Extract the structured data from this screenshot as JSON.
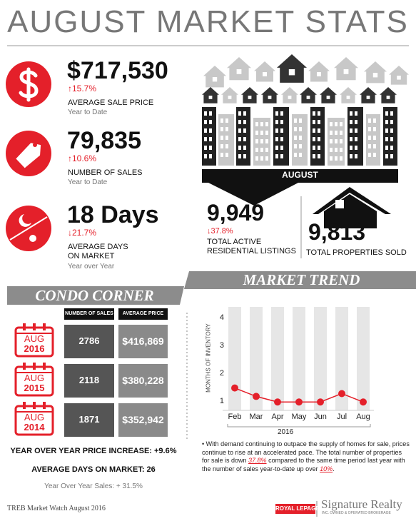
{
  "title": "AUGUST MARKET STATS",
  "stats": [
    {
      "value": "$717,530",
      "change": "↑15.7%",
      "label": "AVERAGE SALE PRICE",
      "period": "Year to Date"
    },
    {
      "value": "79,835",
      "change": "↑10.6%",
      "label": "NUMBER OF SALES",
      "period": "Year to Date"
    },
    {
      "value": "18 Days",
      "change": "↓21.7%",
      "label": "AVERAGE DAYS ON MARKET",
      "period": "Year over Year"
    }
  ],
  "listings": {
    "banner": "AUGUST",
    "active_value": "9,949",
    "active_change": "↓37.8%",
    "active_label": "TOTAL ACTIVE RESIDENTIAL LISTINGS",
    "sold_value": "9,813",
    "sold_label": "TOTAL PROPERTIES SOLD"
  },
  "condo": {
    "title": "CONDO CORNER",
    "columns": [
      "NUMBER OF SALES",
      "AVERAGE PRICE"
    ],
    "rows": [
      {
        "month": "AUG",
        "year": "2016",
        "sales": "2786",
        "price": "$416,869"
      },
      {
        "month": "AUG",
        "year": "2015",
        "sales": "2118",
        "price": "$380,228"
      },
      {
        "month": "AUG",
        "year": "2014",
        "sales": "1871",
        "price": "$352,942"
      }
    ],
    "price_increase": "YEAR OVER YEAR PRICE INCREASE: +9.6%",
    "days": "AVERAGE DAYS ON MARKET: 26",
    "sales_change": "Year Over Year Sales: + 31.5%"
  },
  "market_trend": {
    "title": "MARKET TREND",
    "note": [
      "• With demand continuing to outpace the supply of homes for sale, prices continue to rise at an accelerated pace. The total number of properties for sale is down ",
      "37.8%",
      " compared to the same time period last year with the number of sales year-to-date up over ",
      "10%",
      "."
    ]
  },
  "chart_data": {
    "type": "line",
    "y_label": "MONTHS OF INVENTORY",
    "x_label": "2016",
    "categories": [
      "Feb",
      "Mar",
      "Apr",
      "May",
      "Jun",
      "Jul",
      "Aug"
    ],
    "values": [
      1.5,
      1.2,
      1.0,
      1.0,
      1.0,
      1.3,
      1.0
    ],
    "color": "#e4202a",
    "ylim": [
      0.7,
      4.4
    ],
    "yticks": [
      1,
      2,
      3,
      4
    ]
  },
  "footer": {
    "source": "TREB Market Watch August 2016",
    "brand": "ROYAL LEPAGE",
    "company": "Signature Realty",
    "tagline": "INC. OWNED & OPERATED BROKERAGE"
  }
}
